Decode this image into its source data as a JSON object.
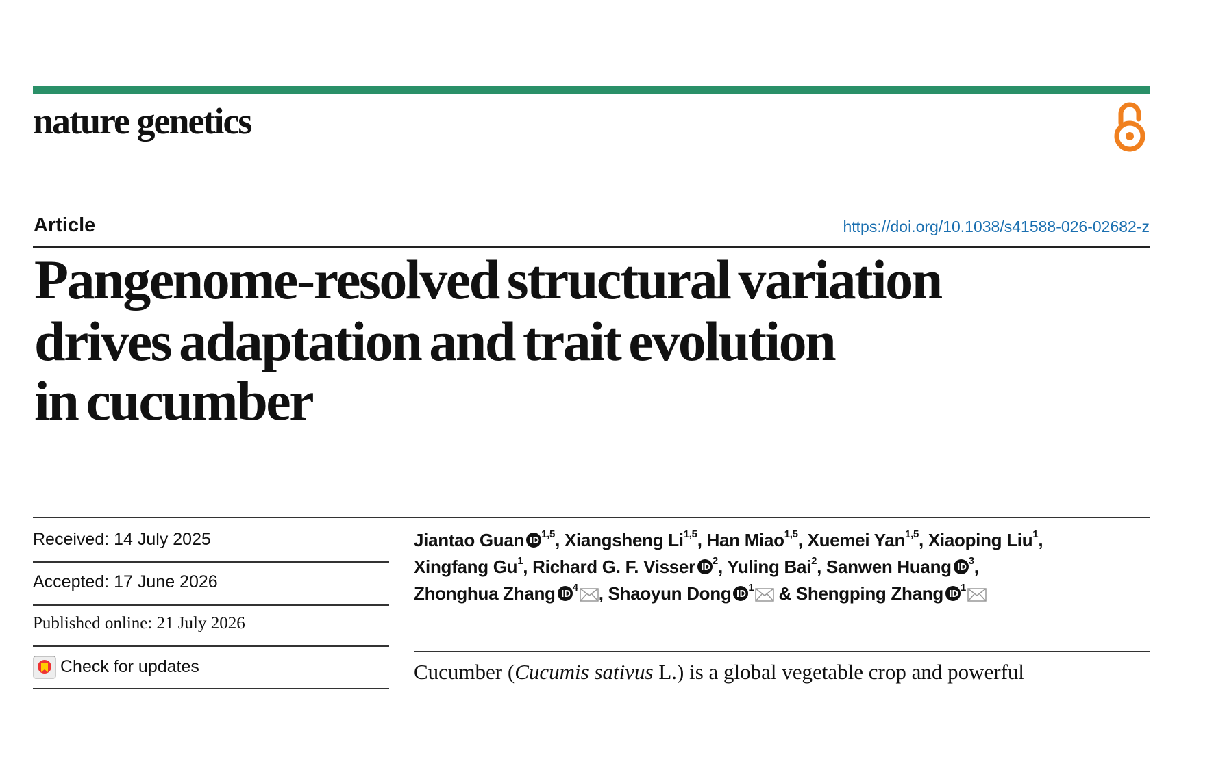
{
  "header": {
    "journal": "nature genetics"
  },
  "article": {
    "type": "Article",
    "doi": "https://doi.org/10.1038/s41588-026-02682-z",
    "title_lines": [
      "Pangenome-resolved structural variation",
      "drives adaptation and trait evolution",
      "in cucumber"
    ]
  },
  "dates": {
    "received": "Received: 14 July 2025",
    "accepted": "Accepted: 17 June 2026",
    "published": "Published online: 21 July 2026",
    "updates": "Check for updates"
  },
  "authors": [
    {
      "name": "Jiantao Guan",
      "sup": "1,5",
      "sep": ","
    },
    {
      "name": "Xiangsheng Li",
      "sup": "1,5",
      "sep": ","
    },
    {
      "name": "Han Miao",
      "sup": "1,5",
      "sep": ","
    },
    {
      "name": "Xuemei Yan",
      "sup": "1,5",
      "sep": ","
    },
    {
      "name": "Xiaoping Liu",
      "sup": "1",
      "sep": ","
    },
    {
      "name": "Xingfang Gu",
      "sup": "1",
      "sep": ","
    },
    {
      "name": "Richard G. F. Visser",
      "sup": "2",
      "sep": ","
    },
    {
      "name": "Yuling Bai",
      "sup": "2",
      "sep": ","
    },
    {
      "name": "Sanwen Huang",
      "sup": "3",
      "sep": ","
    },
    {
      "name": "Zhonghua Zhang",
      "sup": "4",
      "sep": ","
    },
    {
      "name": "Shaoyun Dong",
      "sup": "1",
      "sep": "&"
    },
    {
      "name": "Shengping Zhang",
      "sup": "1"
    }
  ],
  "abstract": {
    "before": "Cucumber (",
    "italic": "Cucumis sativus",
    "after": " L.) is a global vegetable crop and powerful"
  }
}
